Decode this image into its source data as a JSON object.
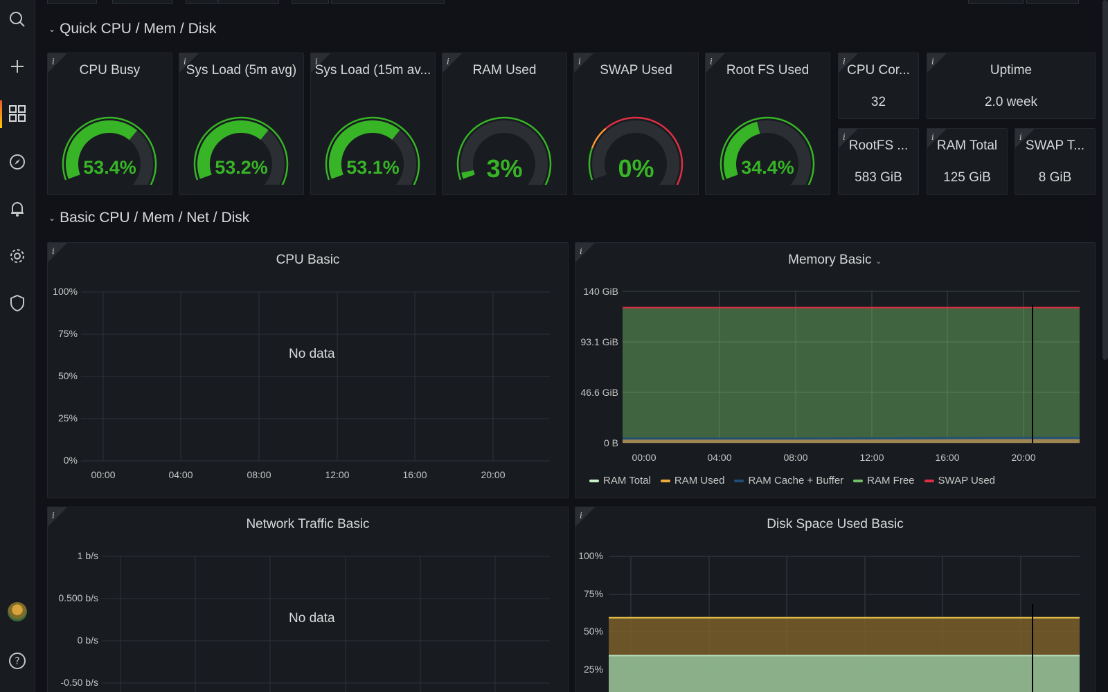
{
  "rows": {
    "quick": "Quick CPU / Mem / Disk",
    "basic": "Basic CPU / Mem / Net / Disk"
  },
  "info_glyph": "i",
  "gauges": [
    {
      "title": "CPU Busy",
      "value": "53.4%",
      "percent": 53.4
    },
    {
      "title": "Sys Load (5m avg)",
      "value": "53.2%",
      "percent": 53.2
    },
    {
      "title": "Sys Load (15m av...",
      "value": "53.1%",
      "percent": 53.1
    },
    {
      "title": "RAM Used",
      "value": "3%",
      "percent": 3
    },
    {
      "title": "SWAP Used",
      "value": "0%",
      "percent": 0
    },
    {
      "title": "Root FS Used",
      "value": "34.4%",
      "percent": 34.4
    }
  ],
  "stats": [
    {
      "title": "CPU Cor...",
      "value": "32"
    },
    {
      "title": "Uptime",
      "value": "2.0 week"
    },
    {
      "title": "RootFS ...",
      "value": "583 GiB"
    },
    {
      "title": "RAM Total",
      "value": "125 GiB"
    },
    {
      "title": "SWAP T...",
      "value": "8 GiB"
    }
  ],
  "cpu_basic": {
    "title": "CPU Basic",
    "nodata": "No data",
    "y_ticks": [
      "100%",
      "75%",
      "50%",
      "25%",
      "0%"
    ],
    "x_ticks": [
      "00:00",
      "04:00",
      "08:00",
      "12:00",
      "16:00",
      "20:00"
    ]
  },
  "memory_basic": {
    "title": "Memory Basic",
    "y_ticks": [
      "140 GiB",
      "93.1 GiB",
      "46.6 GiB",
      "0 B"
    ],
    "x_ticks": [
      "00:00",
      "04:00",
      "08:00",
      "12:00",
      "16:00",
      "20:00"
    ],
    "legend": [
      {
        "label": "RAM Total",
        "color": "#c8f2c2"
      },
      {
        "label": "RAM Used",
        "color": "#f2a93b"
      },
      {
        "label": "RAM Cache + Buffer",
        "color": "#1f4e79"
      },
      {
        "label": "RAM Free",
        "color": "#73bf69"
      },
      {
        "label": "SWAP Used",
        "color": "#e02f44"
      }
    ]
  },
  "network_basic": {
    "title": "Network Traffic Basic",
    "nodata": "No data",
    "y_ticks": [
      "1 b/s",
      "0.500 b/s",
      "0 b/s",
      "-0.50 b/s"
    ]
  },
  "disk_basic": {
    "title": "Disk Space Used Basic",
    "y_ticks": [
      "100%",
      "75%",
      "50%",
      "25%"
    ]
  },
  "chart_data": [
    {
      "type": "area",
      "title": "Memory Basic",
      "x": [
        "00:00",
        "04:00",
        "08:00",
        "12:00",
        "16:00",
        "20:00"
      ],
      "ylim": [
        0,
        140
      ],
      "series": [
        {
          "name": "RAM Total",
          "values": [
            125,
            125,
            125,
            125,
            125,
            125
          ]
        },
        {
          "name": "RAM Free",
          "values": [
            117,
            117,
            117,
            116.5,
            116.5,
            116.5
          ]
        },
        {
          "name": "RAM Cache + Buffer",
          "values": [
            5,
            5,
            5,
            5.3,
            5.5,
            5.5
          ]
        },
        {
          "name": "RAM Used",
          "values": [
            3,
            3,
            3,
            3.2,
            3.5,
            3.5
          ]
        },
        {
          "name": "SWAP Used",
          "values": [
            0,
            0,
            0,
            0,
            0,
            0
          ]
        }
      ]
    },
    {
      "type": "area",
      "title": "Disk Space Used Basic",
      "ylim": [
        0,
        100
      ],
      "series": [
        {
          "values": [
            59.5,
            59.5
          ]
        },
        {
          "values": [
            34.4,
            34.4
          ]
        }
      ]
    }
  ],
  "colors": {
    "gauge_green": "#37b526",
    "gauge_track": "#2b2e33",
    "threshold_red": "#e02f44",
    "threshold_orange": "#ff9830",
    "threshold_green": "#37b526"
  }
}
